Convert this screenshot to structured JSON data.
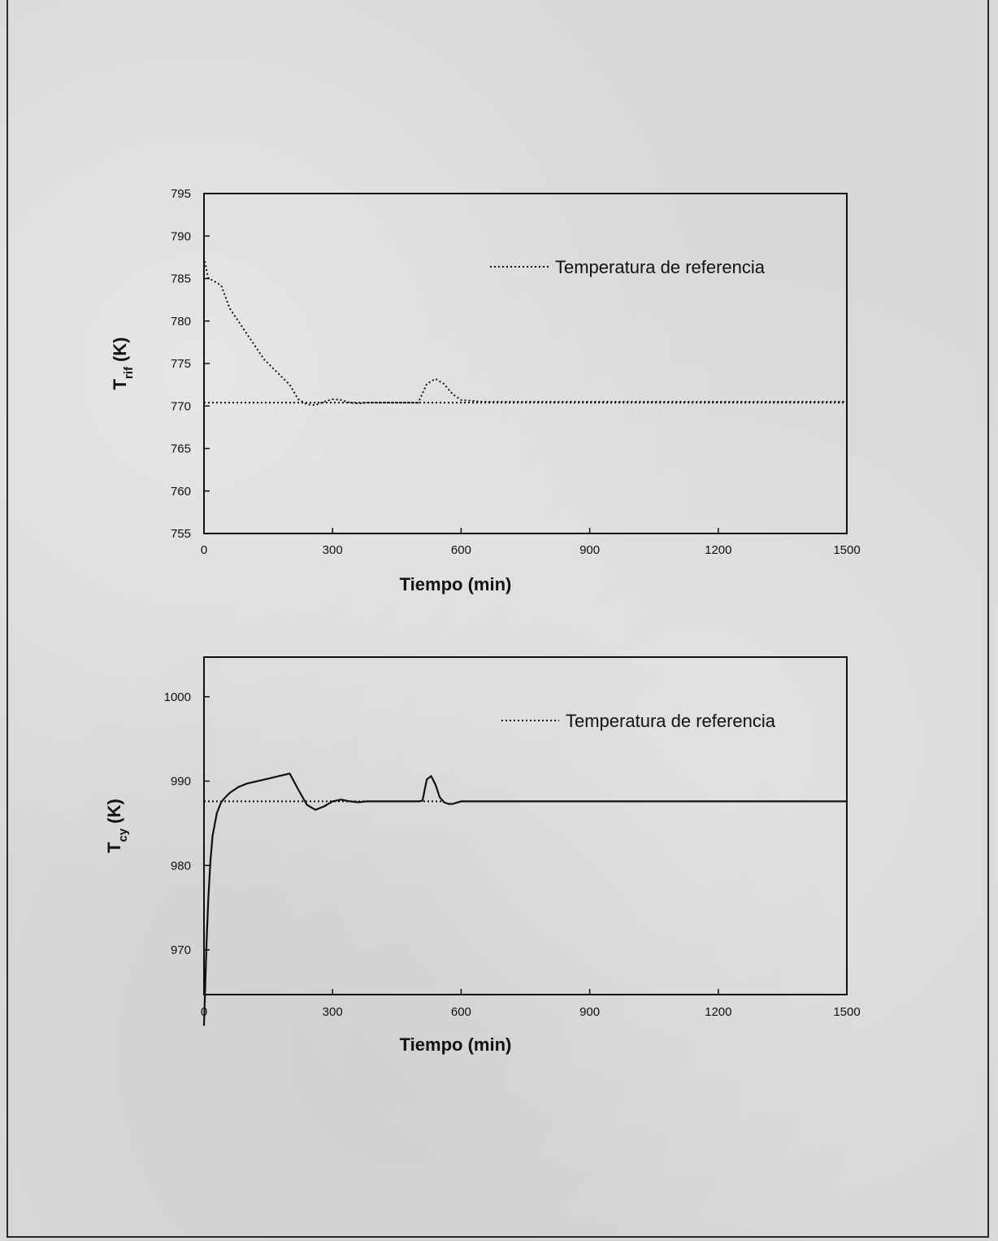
{
  "chart_data": [
    {
      "type": "line",
      "title": "",
      "xlabel": "Tiempo (min)",
      "ylabel": "T",
      "ylabel_subscript": "rif",
      "ylabel_unit": "(K)",
      "xlim": [
        0,
        1500
      ],
      "ylim": [
        755,
        795
      ],
      "xticks": [
        0,
        300,
        600,
        900,
        1200,
        1500
      ],
      "yticks": [
        755,
        760,
        765,
        770,
        775,
        780,
        785,
        790,
        795
      ],
      "grid": false,
      "legend_position": "top-right",
      "legend_entries": [
        "Temperatura de referencia"
      ],
      "series": [
        {
          "name": "",
          "style": "dotted",
          "x": [
            0,
            10,
            20,
            40,
            60,
            80,
            100,
            120,
            140,
            160,
            180,
            200,
            220,
            240,
            260,
            280,
            300,
            320,
            340,
            360,
            380,
            400,
            450,
            500,
            510,
            520,
            540,
            560,
            580,
            600,
            650,
            700,
            800,
            900,
            1000,
            1100,
            1200,
            1300,
            1400,
            1500
          ],
          "y": [
            787.5,
            785.0,
            784.8,
            784.2,
            781.5,
            780.0,
            778.5,
            777.0,
            775.5,
            774.5,
            773.5,
            772.5,
            770.8,
            770.2,
            770.1,
            770.5,
            770.8,
            770.7,
            770.4,
            770.3,
            770.4,
            770.4,
            770.4,
            770.4,
            771.5,
            772.6,
            773.2,
            772.6,
            771.4,
            770.7,
            770.5,
            770.5,
            770.5,
            770.5,
            770.5,
            770.5,
            770.5,
            770.5,
            770.5,
            770.5
          ]
        },
        {
          "name": "Temperatura de referencia",
          "style": "dotted",
          "x": [
            0,
            1500
          ],
          "y": [
            770.4,
            770.4
          ]
        }
      ]
    },
    {
      "type": "line",
      "title": "",
      "xlabel": "Tiempo (min)",
      "ylabel": "T",
      "ylabel_subscript": "cy",
      "ylabel_unit": "(K)",
      "xlim": [
        0,
        1500
      ],
      "ylim": [
        964.7,
        1004.7
      ],
      "xticks": [
        0,
        300,
        600,
        900,
        1200,
        1500
      ],
      "yticks": [
        970,
        980,
        990,
        1000
      ],
      "grid": false,
      "legend_position": "top-right",
      "legend_entries": [
        "Temperatura de referencia"
      ],
      "series": [
        {
          "name": "",
          "style": "solid",
          "x": [
            0,
            3,
            6,
            10,
            15,
            20,
            30,
            40,
            50,
            60,
            80,
            100,
            150,
            200,
            220,
            240,
            260,
            280,
            300,
            320,
            340,
            360,
            380,
            400,
            450,
            500,
            510,
            515,
            520,
            530,
            540,
            550,
            560,
            570,
            580,
            600,
            650,
            700,
            800,
            900,
            1000,
            1100,
            1200,
            1300,
            1400,
            1500
          ],
          "y": [
            961.0,
            966.0,
            971.0,
            976.0,
            980.5,
            983.5,
            986.2,
            987.5,
            988.1,
            988.6,
            989.3,
            989.7,
            990.3,
            990.9,
            989.0,
            987.2,
            986.6,
            987.0,
            987.6,
            987.8,
            987.6,
            987.5,
            987.6,
            987.6,
            987.6,
            987.6,
            987.7,
            989.0,
            990.2,
            990.6,
            989.6,
            988.1,
            987.5,
            987.3,
            987.3,
            987.6,
            987.6,
            987.6,
            987.6,
            987.6,
            987.6,
            987.6,
            987.6,
            987.6,
            987.6,
            987.6
          ]
        },
        {
          "name": "Temperatura de referencia",
          "style": "dotted",
          "x": [
            0,
            560
          ],
          "y": [
            987.6,
            987.6
          ]
        }
      ]
    }
  ]
}
